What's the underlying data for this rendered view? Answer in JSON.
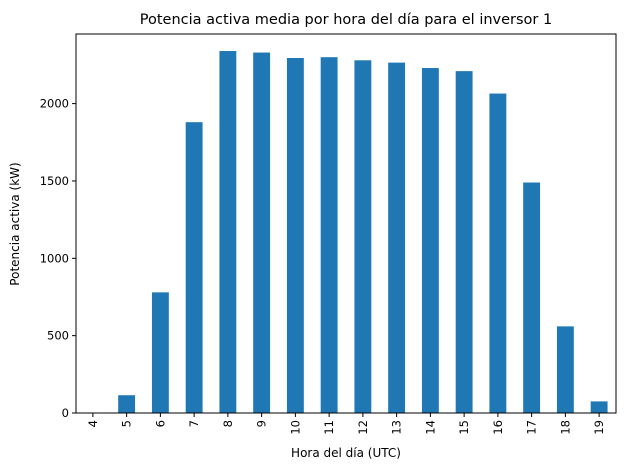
{
  "chart_data": {
    "type": "bar",
    "title": "Potencia activa media por hora del día para el inversor 1",
    "xlabel": "Hora del día (UTC)",
    "ylabel": "Potencia activa (kW)",
    "categories": [
      "4",
      "5",
      "6",
      "7",
      "8",
      "9",
      "10",
      "11",
      "12",
      "13",
      "14",
      "15",
      "16",
      "17",
      "18",
      "19"
    ],
    "values": [
      0,
      115,
      780,
      1880,
      2340,
      2330,
      2295,
      2300,
      2280,
      2265,
      2230,
      2210,
      2065,
      1490,
      560,
      75
    ],
    "ylim": [
      0,
      2450
    ],
    "yticks": [
      0,
      500,
      1000,
      1500,
      2000
    ],
    "grid": false,
    "bar_color": "#1f77b4"
  }
}
